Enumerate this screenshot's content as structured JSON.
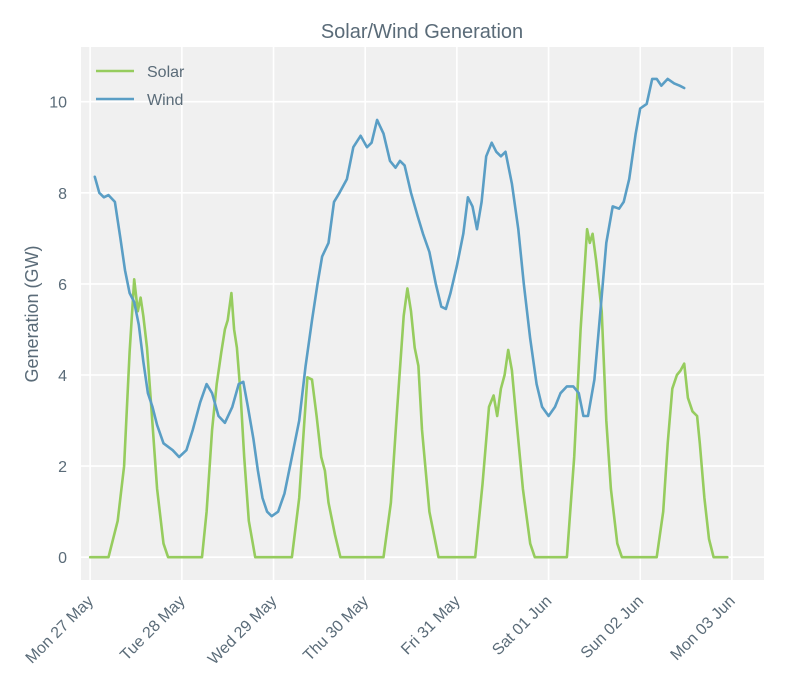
{
  "chart_data": {
    "type": "line",
    "title": "Solar/Wind Generation",
    "xlabel": "",
    "ylabel": "Generation (GW)",
    "ylim": [
      -0.5,
      11.2
    ],
    "xlim": [
      -0.1,
      7.35
    ],
    "yticks": [
      0,
      2,
      4,
      6,
      8,
      10
    ],
    "xticks": [
      {
        "day": 0,
        "label": "Mon 27 May"
      },
      {
        "day": 1,
        "label": "Tue 28 May"
      },
      {
        "day": 2,
        "label": "Wed 29 May"
      },
      {
        "day": 3,
        "label": "Thu 30 May"
      },
      {
        "day": 4,
        "label": "Fri 31 May"
      },
      {
        "day": 5,
        "label": "Sat 01 Jun"
      },
      {
        "day": 6,
        "label": "Sun 02 Jun"
      },
      {
        "day": 7,
        "label": "Mon 03 Jun"
      }
    ],
    "grid": true,
    "legend_position": "top-left",
    "series": [
      {
        "name": "Solar",
        "color": "#96cc5e",
        "points": [
          [
            0.0,
            0
          ],
          [
            0.2,
            0
          ],
          [
            0.3,
            0.8
          ],
          [
            0.37,
            2.0
          ],
          [
            0.43,
            4.5
          ],
          [
            0.48,
            6.1
          ],
          [
            0.52,
            5.4
          ],
          [
            0.55,
            5.7
          ],
          [
            0.58,
            5.3
          ],
          [
            0.62,
            4.6
          ],
          [
            0.67,
            3.2
          ],
          [
            0.73,
            1.5
          ],
          [
            0.8,
            0.3
          ],
          [
            0.85,
            0
          ],
          [
            1.0,
            0
          ],
          [
            1.22,
            0
          ],
          [
            1.27,
            1.0
          ],
          [
            1.33,
            2.8
          ],
          [
            1.38,
            3.8
          ],
          [
            1.43,
            4.5
          ],
          [
            1.47,
            5.0
          ],
          [
            1.5,
            5.2
          ],
          [
            1.54,
            5.8
          ],
          [
            1.57,
            5.0
          ],
          [
            1.6,
            4.6
          ],
          [
            1.64,
            3.6
          ],
          [
            1.68,
            2.2
          ],
          [
            1.73,
            0.8
          ],
          [
            1.8,
            0
          ],
          [
            2.0,
            0
          ],
          [
            2.2,
            0
          ],
          [
            2.28,
            1.3
          ],
          [
            2.33,
            2.8
          ],
          [
            2.37,
            3.95
          ],
          [
            2.42,
            3.9
          ],
          [
            2.47,
            3.1
          ],
          [
            2.52,
            2.2
          ],
          [
            2.56,
            1.9
          ],
          [
            2.6,
            1.2
          ],
          [
            2.67,
            0.5
          ],
          [
            2.73,
            0
          ],
          [
            3.0,
            0
          ],
          [
            3.2,
            0
          ],
          [
            3.28,
            1.2
          ],
          [
            3.35,
            3.3
          ],
          [
            3.42,
            5.3
          ],
          [
            3.46,
            5.9
          ],
          [
            3.5,
            5.4
          ],
          [
            3.54,
            4.6
          ],
          [
            3.58,
            4.2
          ],
          [
            3.62,
            2.8
          ],
          [
            3.7,
            1.0
          ],
          [
            3.8,
            0
          ],
          [
            4.0,
            0
          ],
          [
            4.2,
            0
          ],
          [
            4.28,
            1.6
          ],
          [
            4.35,
            3.3
          ],
          [
            4.4,
            3.55
          ],
          [
            4.44,
            3.1
          ],
          [
            4.48,
            3.7
          ],
          [
            4.52,
            4.0
          ],
          [
            4.56,
            4.55
          ],
          [
            4.6,
            4.1
          ],
          [
            4.65,
            3.0
          ],
          [
            4.72,
            1.5
          ],
          [
            4.8,
            0.3
          ],
          [
            4.85,
            0
          ],
          [
            5.0,
            0
          ],
          [
            5.2,
            0
          ],
          [
            5.28,
            2.2
          ],
          [
            5.35,
            5.0
          ],
          [
            5.42,
            7.2
          ],
          [
            5.45,
            6.9
          ],
          [
            5.48,
            7.1
          ],
          [
            5.52,
            6.5
          ],
          [
            5.58,
            5.4
          ],
          [
            5.63,
            3.0
          ],
          [
            5.68,
            1.5
          ],
          [
            5.75,
            0.3
          ],
          [
            5.8,
            0
          ],
          [
            6.0,
            0
          ],
          [
            6.18,
            0
          ],
          [
            6.25,
            1.0
          ],
          [
            6.3,
            2.5
          ],
          [
            6.35,
            3.7
          ],
          [
            6.4,
            4.0
          ],
          [
            6.44,
            4.1
          ],
          [
            6.48,
            4.25
          ],
          [
            6.52,
            3.5
          ],
          [
            6.57,
            3.2
          ],
          [
            6.62,
            3.1
          ],
          [
            6.65,
            2.5
          ],
          [
            6.7,
            1.3
          ],
          [
            6.75,
            0.4
          ],
          [
            6.8,
            0
          ],
          [
            6.95,
            0
          ]
        ]
      },
      {
        "name": "Wind",
        "color": "#5a9ec5",
        "points": [
          [
            0.05,
            8.35
          ],
          [
            0.1,
            8.0
          ],
          [
            0.15,
            7.9
          ],
          [
            0.2,
            7.95
          ],
          [
            0.27,
            7.8
          ],
          [
            0.33,
            7.0
          ],
          [
            0.38,
            6.3
          ],
          [
            0.43,
            5.8
          ],
          [
            0.48,
            5.6
          ],
          [
            0.53,
            5.1
          ],
          [
            0.58,
            4.3
          ],
          [
            0.63,
            3.6
          ],
          [
            0.68,
            3.3
          ],
          [
            0.73,
            2.9
          ],
          [
            0.8,
            2.5
          ],
          [
            0.9,
            2.35
          ],
          [
            0.97,
            2.2
          ],
          [
            1.05,
            2.35
          ],
          [
            1.12,
            2.8
          ],
          [
            1.2,
            3.4
          ],
          [
            1.27,
            3.8
          ],
          [
            1.33,
            3.6
          ],
          [
            1.4,
            3.1
          ],
          [
            1.47,
            2.95
          ],
          [
            1.55,
            3.3
          ],
          [
            1.62,
            3.8
          ],
          [
            1.67,
            3.85
          ],
          [
            1.72,
            3.3
          ],
          [
            1.78,
            2.6
          ],
          [
            1.83,
            1.9
          ],
          [
            1.88,
            1.3
          ],
          [
            1.93,
            1.0
          ],
          [
            1.98,
            0.9
          ],
          [
            2.05,
            1.0
          ],
          [
            2.12,
            1.4
          ],
          [
            2.2,
            2.2
          ],
          [
            2.28,
            3.0
          ],
          [
            2.35,
            4.2
          ],
          [
            2.42,
            5.2
          ],
          [
            2.48,
            6.0
          ],
          [
            2.53,
            6.6
          ],
          [
            2.6,
            6.9
          ],
          [
            2.66,
            7.8
          ],
          [
            2.72,
            8.0
          ],
          [
            2.8,
            8.3
          ],
          [
            2.87,
            9.0
          ],
          [
            2.95,
            9.25
          ],
          [
            3.02,
            9.0
          ],
          [
            3.07,
            9.1
          ],
          [
            3.13,
            9.6
          ],
          [
            3.2,
            9.3
          ],
          [
            3.27,
            8.7
          ],
          [
            3.33,
            8.55
          ],
          [
            3.38,
            8.7
          ],
          [
            3.43,
            8.6
          ],
          [
            3.5,
            8.0
          ],
          [
            3.57,
            7.5
          ],
          [
            3.63,
            7.1
          ],
          [
            3.7,
            6.7
          ],
          [
            3.77,
            6.0
          ],
          [
            3.83,
            5.5
          ],
          [
            3.88,
            5.45
          ],
          [
            3.93,
            5.8
          ],
          [
            4.0,
            6.4
          ],
          [
            4.07,
            7.1
          ],
          [
            4.12,
            7.9
          ],
          [
            4.17,
            7.7
          ],
          [
            4.22,
            7.2
          ],
          [
            4.27,
            7.8
          ],
          [
            4.32,
            8.8
          ],
          [
            4.38,
            9.1
          ],
          [
            4.43,
            8.9
          ],
          [
            4.48,
            8.8
          ],
          [
            4.53,
            8.9
          ],
          [
            4.6,
            8.2
          ],
          [
            4.67,
            7.2
          ],
          [
            4.73,
            6.0
          ],
          [
            4.8,
            4.8
          ],
          [
            4.87,
            3.8
          ],
          [
            4.93,
            3.3
          ],
          [
            5.0,
            3.1
          ],
          [
            5.07,
            3.3
          ],
          [
            5.13,
            3.6
          ],
          [
            5.2,
            3.75
          ],
          [
            5.27,
            3.75
          ],
          [
            5.33,
            3.6
          ],
          [
            5.38,
            3.1
          ],
          [
            5.43,
            3.1
          ],
          [
            5.5,
            3.9
          ],
          [
            5.57,
            5.5
          ],
          [
            5.63,
            6.9
          ],
          [
            5.7,
            7.7
          ],
          [
            5.77,
            7.65
          ],
          [
            5.82,
            7.8
          ],
          [
            5.88,
            8.3
          ],
          [
            5.95,
            9.3
          ],
          [
            6.0,
            9.85
          ],
          [
            6.07,
            9.95
          ],
          [
            6.13,
            10.5
          ],
          [
            6.18,
            10.5
          ],
          [
            6.23,
            10.35
          ],
          [
            6.3,
            10.5
          ],
          [
            6.37,
            10.4
          ],
          [
            6.43,
            10.35
          ],
          [
            6.48,
            10.3
          ]
        ]
      }
    ]
  }
}
